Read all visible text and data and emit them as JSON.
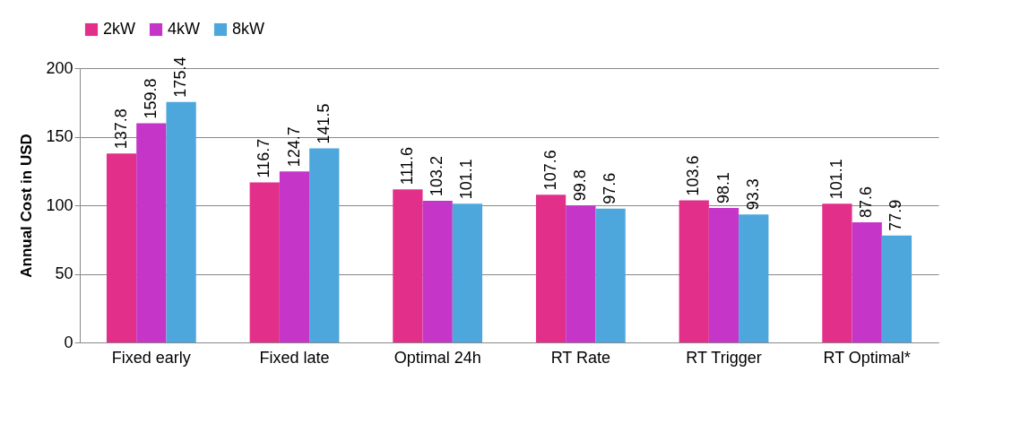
{
  "chart_data": {
    "type": "bar",
    "ylabel": "Annual Cost in USD",
    "categories": [
      "Fixed early",
      "Fixed late",
      "Optimal 24h",
      "RT Rate",
      "RT Trigger",
      "RT Optimal*"
    ],
    "series": [
      {
        "name": "2kW",
        "color": "#e2308a",
        "values": [
          137.8,
          116.7,
          111.6,
          107.6,
          103.6,
          101.1
        ]
      },
      {
        "name": "4kW",
        "color": "#c435c8",
        "values": [
          159.8,
          124.7,
          103.2,
          99.8,
          98.1,
          87.6
        ]
      },
      {
        "name": "8kW",
        "color": "#4ea7dc",
        "values": [
          175.4,
          141.5,
          101.1,
          97.6,
          93.3,
          77.9
        ]
      }
    ],
    "ylim": [
      0,
      200
    ],
    "yticks": [
      0,
      50,
      100,
      150,
      200
    ],
    "grid": "y",
    "legend": "top",
    "data_labels": true
  }
}
